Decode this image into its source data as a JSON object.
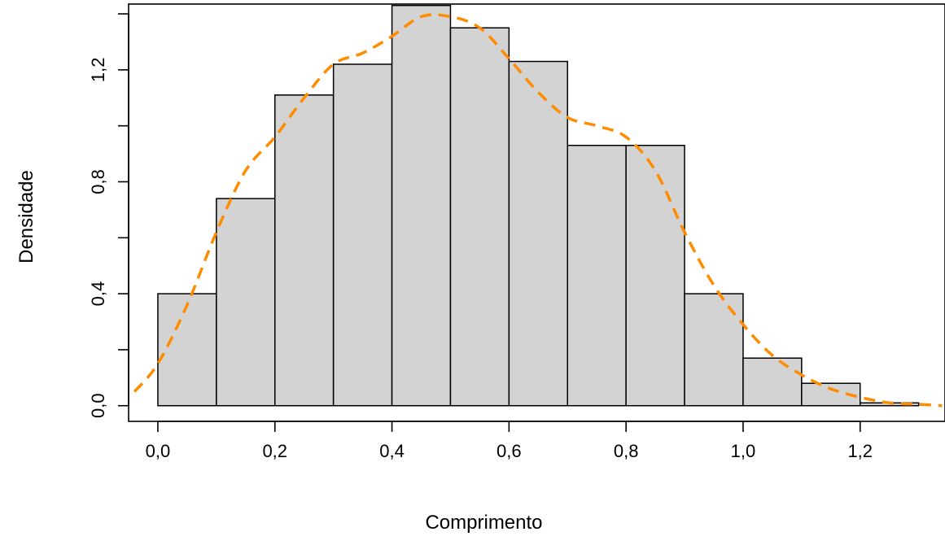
{
  "chart_data": {
    "type": "bar",
    "subtype": "histogram-with-density",
    "xlabel": "Comprimento",
    "ylabel": "Densidade",
    "bins": [
      {
        "from": 0.0,
        "to": 0.1,
        "density": 0.4
      },
      {
        "from": 0.1,
        "to": 0.2,
        "density": 0.74
      },
      {
        "from": 0.2,
        "to": 0.3,
        "density": 1.11
      },
      {
        "from": 0.3,
        "to": 0.4,
        "density": 1.22
      },
      {
        "from": 0.4,
        "to": 0.5,
        "density": 1.43
      },
      {
        "from": 0.5,
        "to": 0.6,
        "density": 1.35
      },
      {
        "from": 0.6,
        "to": 0.7,
        "density": 1.23
      },
      {
        "from": 0.7,
        "to": 0.8,
        "density": 0.93
      },
      {
        "from": 0.8,
        "to": 0.9,
        "density": 0.93
      },
      {
        "from": 0.9,
        "to": 1.0,
        "density": 0.4
      },
      {
        "from": 1.0,
        "to": 1.1,
        "density": 0.17
      },
      {
        "from": 1.1,
        "to": 1.2,
        "density": 0.08
      },
      {
        "from": 1.2,
        "to": 1.3,
        "density": 0.01
      }
    ],
    "density_curve": {
      "x": [
        -0.04,
        0.0,
        0.05,
        0.1,
        0.15,
        0.2,
        0.25,
        0.3,
        0.35,
        0.4,
        0.45,
        0.5,
        0.55,
        0.6,
        0.65,
        0.7,
        0.75,
        0.8,
        0.85,
        0.9,
        0.95,
        1.0,
        1.05,
        1.1,
        1.15,
        1.2,
        1.25,
        1.3,
        1.34
      ],
      "y": [
        0.05,
        0.15,
        0.36,
        0.62,
        0.84,
        0.96,
        1.1,
        1.22,
        1.26,
        1.32,
        1.39,
        1.39,
        1.35,
        1.24,
        1.12,
        1.03,
        1.0,
        0.96,
        0.84,
        0.62,
        0.43,
        0.29,
        0.18,
        0.11,
        0.06,
        0.03,
        0.01,
        0.005,
        0.0
      ]
    },
    "xlim": [
      -0.05,
      1.345
    ],
    "ylim": [
      -0.056,
      1.435
    ],
    "xticks": [
      0.0,
      0.2,
      0.4,
      0.6,
      0.8,
      1.0,
      1.2
    ],
    "xtick_labels": [
      "0,0",
      "0,2",
      "0,4",
      "0,6",
      "0,8",
      "1,0",
      "1,2"
    ],
    "yticks": [
      0.0,
      0.2,
      0.4,
      0.6,
      0.8,
      1.0,
      1.2,
      1.4
    ],
    "ytick_labels": [
      "0,0",
      "",
      "0,4",
      "",
      "0,8",
      "",
      "1,2",
      ""
    ],
    "grid": false,
    "colors": {
      "bar_fill": "#d3d3d3",
      "bar_edge": "#000000",
      "density_line": "#ff8c00"
    }
  }
}
